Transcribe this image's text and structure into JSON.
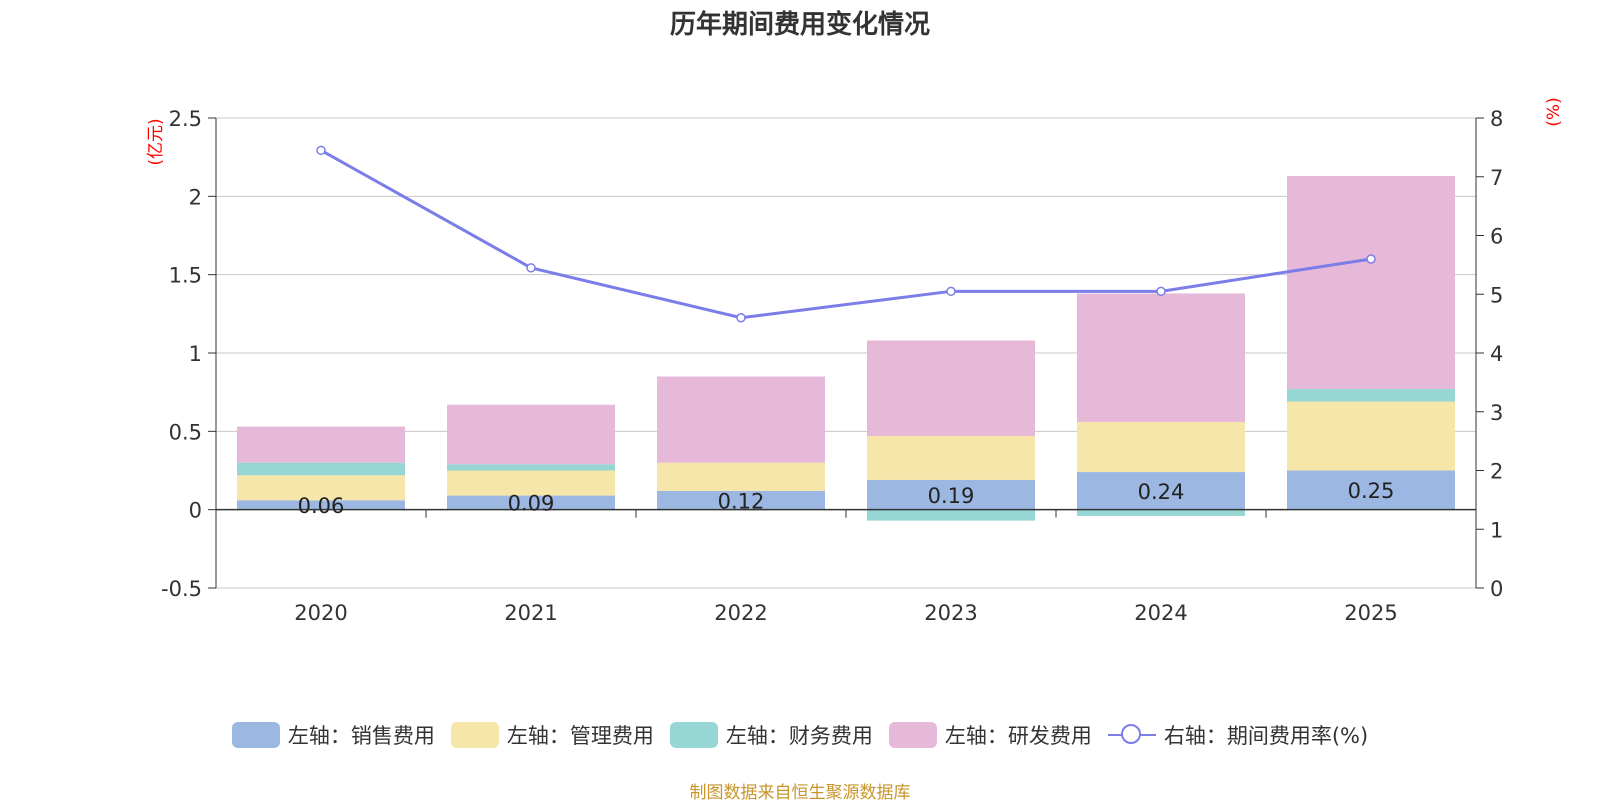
{
  "title": "历年期间费用变化情况",
  "source": "制图数据来自恒生聚源数据库",
  "colors": {
    "sales": "#9bb7e2",
    "admin": "#f7e6a9",
    "finance": "#96d6d4",
    "rnd": "#e6b9d9",
    "rate_line": "#7b7de8",
    "unit": "#ff0000"
  },
  "legend": [
    {
      "label": "左轴：销售费用",
      "color": "#9bb7e2",
      "kind": "box"
    },
    {
      "label": "左轴：管理费用",
      "color": "#f7e6a9",
      "kind": "box"
    },
    {
      "label": "左轴：财务费用",
      "color": "#96d6d4",
      "kind": "box"
    },
    {
      "label": "左轴：研发费用",
      "color": "#e6b9d9",
      "kind": "box"
    },
    {
      "label": "右轴：期间费用率(%)",
      "color": "#7b7de8",
      "kind": "line"
    }
  ],
  "chart_data": {
    "type": "bar",
    "stacked": true,
    "title": "历年期间费用变化情况",
    "categories": [
      "2020",
      "2021",
      "2022",
      "2023",
      "2024",
      "2025"
    ],
    "left_axis": {
      "unit": "(亿元)",
      "min": -0.5,
      "max": 2.5,
      "ticks": [
        "-0.5",
        "0",
        "0.5",
        "1",
        "1.5",
        "2",
        "2.5"
      ]
    },
    "right_axis": {
      "unit": "(%)",
      "min": 0,
      "max": 8,
      "ticks": [
        "0",
        "1",
        "2",
        "3",
        "4",
        "5",
        "6",
        "7",
        "8"
      ]
    },
    "series": [
      {
        "name": "销售费用",
        "axis": "left",
        "values": [
          0.06,
          0.09,
          0.12,
          0.19,
          0.24,
          0.25
        ],
        "labels": [
          "0.06",
          "0.09",
          "0.12",
          "0.19",
          "0.24",
          "0.25"
        ]
      },
      {
        "name": "管理费用",
        "axis": "left",
        "values": [
          0.16,
          0.16,
          0.18,
          0.28,
          0.32,
          0.44
        ]
      },
      {
        "name": "财务费用",
        "axis": "left",
        "values": [
          0.08,
          0.04,
          0.0,
          -0.07,
          -0.04,
          0.08
        ]
      },
      {
        "name": "研发费用",
        "axis": "left",
        "values": [
          0.23,
          0.38,
          0.55,
          0.61,
          0.82,
          1.36
        ]
      },
      {
        "name": "期间费用率(%)",
        "axis": "right",
        "type": "line",
        "values": [
          7.45,
          5.45,
          4.6,
          5.05,
          5.05,
          5.6
        ]
      }
    ]
  }
}
